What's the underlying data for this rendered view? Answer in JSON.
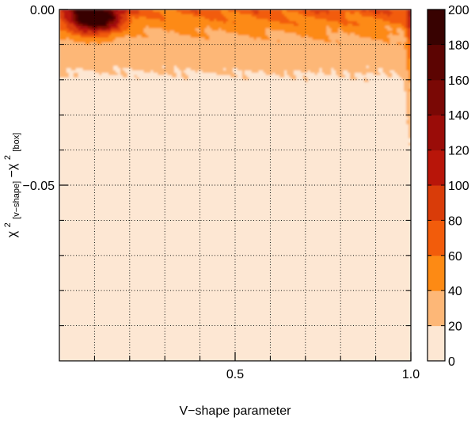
{
  "chart_data": {
    "type": "heatmap",
    "title": "",
    "xlabel": "V−shape parameter",
    "ylabel": {
      "base1": "χ",
      "sup1": "2",
      "sub1": "[v−shape]",
      "mid": "−χ",
      "sup2": "2",
      "sub2": "[box]"
    },
    "xlim": [
      0.0,
      1.0
    ],
    "ylim": [
      -0.1,
      0.0
    ],
    "x_ticks": [
      {
        "value": 0.5,
        "label": "0.5"
      },
      {
        "value": 1.0,
        "label": "1.0"
      }
    ],
    "y_ticks": [
      {
        "value": 0.0,
        "label": "0.00"
      },
      {
        "value": -0.05,
        "label": "−0.05"
      }
    ],
    "grid": true,
    "grid_x": [
      0.1,
      0.2,
      0.3,
      0.4,
      0.5,
      0.6,
      0.7,
      0.8,
      0.9
    ],
    "grid_y": [
      -0.01,
      -0.02,
      -0.03,
      -0.04,
      -0.05,
      -0.06,
      -0.07,
      -0.08,
      -0.09
    ],
    "colorbar": {
      "min": 0,
      "max": 200,
      "ticks": [
        {
          "value": 0,
          "label": "0"
        },
        {
          "value": 20,
          "label": "20"
        },
        {
          "value": 40,
          "label": "40"
        },
        {
          "value": 60,
          "label": "60"
        },
        {
          "value": 80,
          "label": "80"
        },
        {
          "value": 100,
          "label": "100"
        },
        {
          "value": 120,
          "label": "120"
        },
        {
          "value": 140,
          "label": "140"
        },
        {
          "value": 160,
          "label": "160"
        },
        {
          "value": 180,
          "label": "180"
        },
        {
          "value": 200,
          "label": "200"
        }
      ],
      "colors": [
        "#fde7d3",
        "#fdb777",
        "#fd8a14",
        "#f25c0b",
        "#d93c09",
        "#b81509",
        "#9a0c08",
        "#7a0805",
        "#5c0402",
        "#380201"
      ]
    },
    "density_features": [
      {
        "feature": "peak",
        "x": 0.1,
        "y": -0.002,
        "value": 200
      },
      {
        "feature": "ridge along y=0",
        "x_range": [
          0.0,
          1.0
        ],
        "y": -0.002,
        "value": 60
      },
      {
        "feature": "edge at x=1",
        "x": 1.0,
        "y_range": [
          -0.02,
          0.0
        ],
        "value": 70
      },
      {
        "feature": "background",
        "x_range": [
          0.0,
          1.0
        ],
        "y_range": [
          -0.1,
          -0.04
        ],
        "value": 2
      }
    ]
  }
}
